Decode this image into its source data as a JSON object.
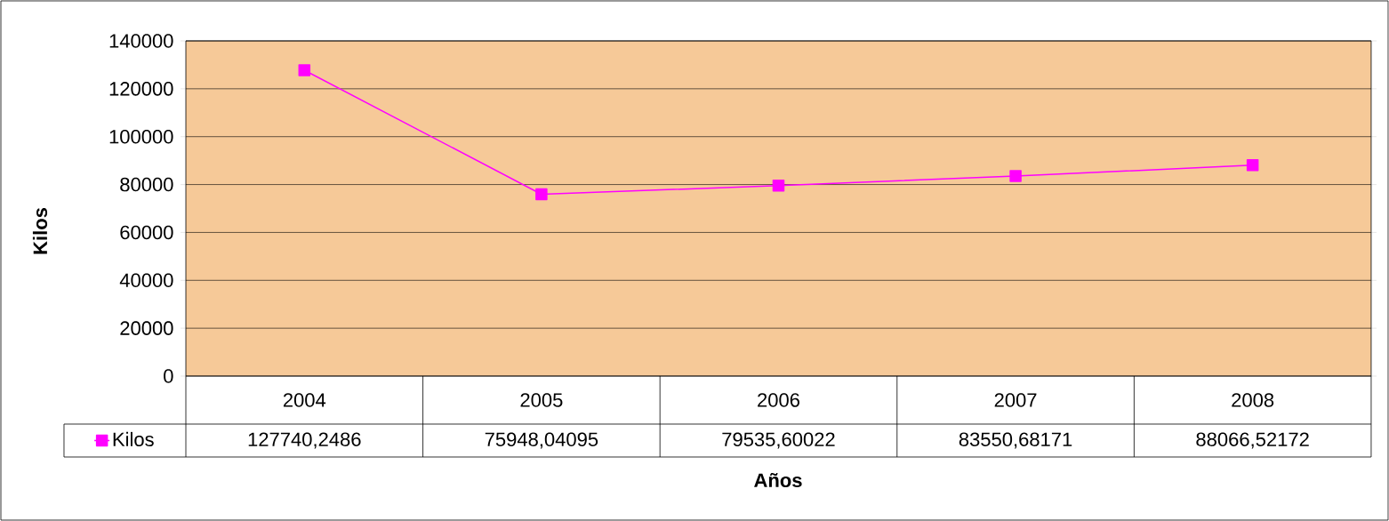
{
  "chart_data": {
    "type": "line",
    "xlabel": "Años",
    "ylabel": "Kilos",
    "categories": [
      "2004",
      "2005",
      "2006",
      "2007",
      "2008"
    ],
    "series": [
      {
        "name": "Kilos",
        "color": "#ff00ff",
        "values": [
          127740.2486,
          75948.04095,
          79535.60022,
          83550.68171,
          88066.52172
        ],
        "value_labels": [
          "127740,2486",
          "75948,04095",
          "79535,60022",
          "83550,68171",
          "88066,52172"
        ]
      }
    ],
    "ylim": [
      0,
      140000
    ],
    "yticks": [
      0,
      20000,
      40000,
      60000,
      80000,
      100000,
      120000,
      140000
    ],
    "grid": "y",
    "legend": "bottom left",
    "marker": "square",
    "line_style": "solid"
  }
}
